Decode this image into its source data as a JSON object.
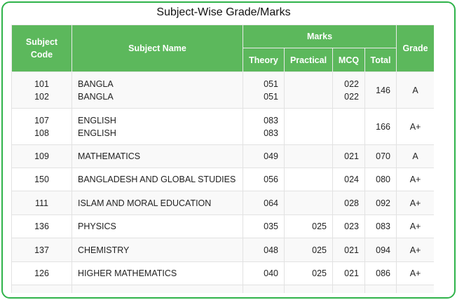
{
  "title": "Subject-Wise Grade/Marks",
  "headers": {
    "subject_code": "Subject Code",
    "subject_name": "Subject Name",
    "marks": "Marks",
    "theory": "Theory",
    "practical": "Practical",
    "mcq": "MCQ",
    "total": "Total",
    "grade": "Grade"
  },
  "rows": [
    {
      "codes": [
        "101",
        "102"
      ],
      "names": [
        "BANGLA",
        "BANGLA"
      ],
      "theory": [
        "051",
        "051"
      ],
      "practical": [
        "",
        ""
      ],
      "mcq": [
        "022",
        "022"
      ],
      "total": "146",
      "grade": "A"
    },
    {
      "codes": [
        "107",
        "108"
      ],
      "names": [
        "ENGLISH",
        "ENGLISH"
      ],
      "theory": [
        "083",
        "083"
      ],
      "practical": [
        "",
        ""
      ],
      "mcq": [
        "",
        ""
      ],
      "total": "166",
      "grade": "A+"
    },
    {
      "codes": [
        "109"
      ],
      "names": [
        "MATHEMATICS"
      ],
      "theory": [
        "049"
      ],
      "practical": [
        ""
      ],
      "mcq": [
        "021"
      ],
      "total": "070",
      "grade": "A"
    },
    {
      "codes": [
        "150"
      ],
      "names": [
        "BANGLADESH AND GLOBAL STUDIES"
      ],
      "theory": [
        "056"
      ],
      "practical": [
        ""
      ],
      "mcq": [
        "024"
      ],
      "total": "080",
      "grade": "A+"
    },
    {
      "codes": [
        "111"
      ],
      "names": [
        "ISLAM AND MORAL EDUCATION"
      ],
      "theory": [
        "064"
      ],
      "practical": [
        ""
      ],
      "mcq": [
        "028"
      ],
      "total": "092",
      "grade": "A+"
    },
    {
      "codes": [
        "136"
      ],
      "names": [
        "PHYSICS"
      ],
      "theory": [
        "035"
      ],
      "practical": [
        "025"
      ],
      "mcq": [
        "023"
      ],
      "total": "083",
      "grade": "A+"
    },
    {
      "codes": [
        "137"
      ],
      "names": [
        "CHEMISTRY"
      ],
      "theory": [
        "048"
      ],
      "practical": [
        "025"
      ],
      "mcq": [
        "021"
      ],
      "total": "094",
      "grade": "A+"
    },
    {
      "codes": [
        "126"
      ],
      "names": [
        "HIGHER MATHEMATICS"
      ],
      "theory": [
        "040"
      ],
      "practical": [
        "025"
      ],
      "mcq": [
        "021"
      ],
      "total": "086",
      "grade": "A+"
    },
    {
      "codes": [
        ""
      ],
      "names": [
        ""
      ],
      "theory": [
        ""
      ],
      "practical": [
        ""
      ],
      "mcq": [
        ""
      ],
      "total": "",
      "grade": ""
    }
  ],
  "colors": {
    "header_bg": "#5cb85c",
    "frame_border": "#2fb34a"
  }
}
